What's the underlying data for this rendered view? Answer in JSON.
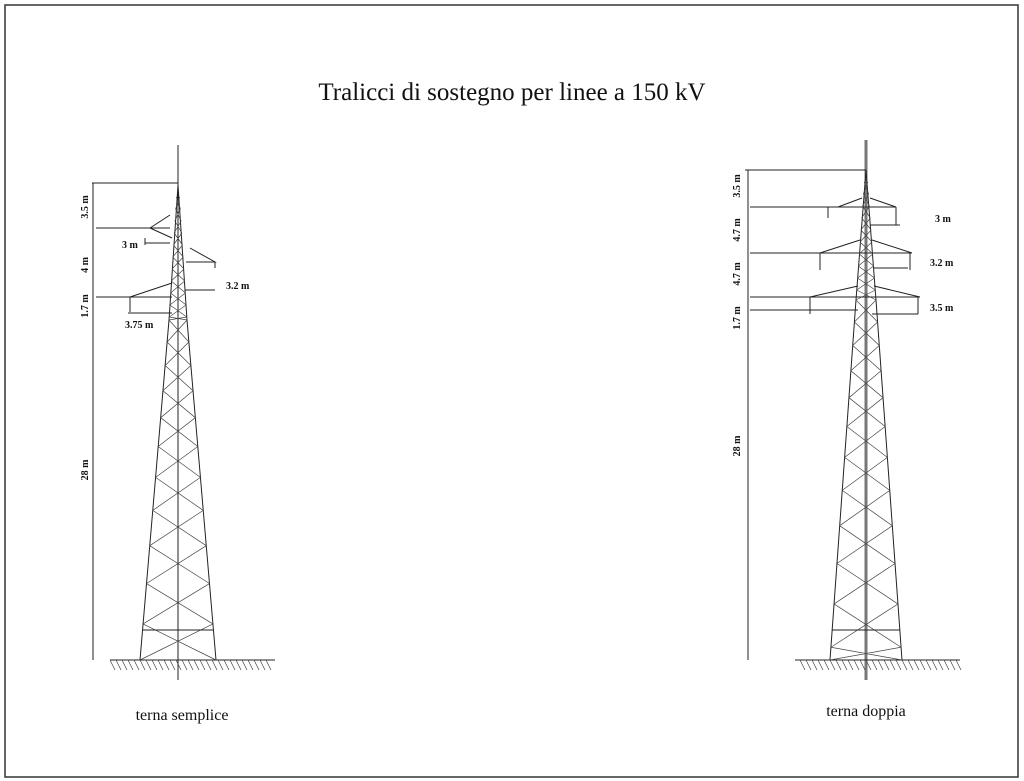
{
  "title": "Tralicci di sostegno per linee a 150 kV",
  "towers": [
    {
      "caption": "terna semplice",
      "vertical_dimensions": [
        "3.5 m",
        "4 m",
        "1.7 m",
        "28 m"
      ],
      "horizontal_dimensions": [
        "3 m",
        "3.2 m",
        "3.75 m"
      ]
    },
    {
      "caption": "terna doppia",
      "vertical_dimensions": [
        "3.5 m",
        "4.7 m",
        "4.7 m",
        "1.7 m",
        "28 m"
      ],
      "horizontal_dimensions": [
        "3 m",
        "3.2 m",
        "3.5 m"
      ]
    }
  ]
}
